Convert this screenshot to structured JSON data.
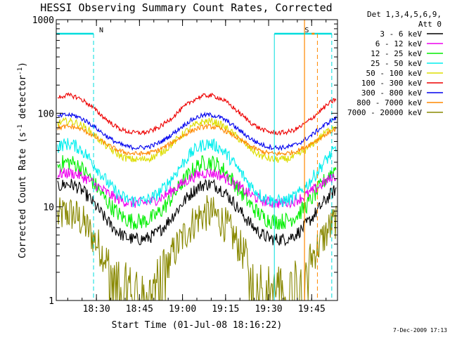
{
  "chart_data": {
    "type": "line",
    "title": "HESSI Observing Summary Count Rates, Corrected",
    "xlabel": "Start Time (01-Jul-08 18:16:22)",
    "ylabel_main": "Corrected Count Rate (s",
    "ylabel_sup1": "-1",
    "ylabel_mid": " detector",
    "ylabel_sup2": "-1",
    "ylabel_end": ")",
    "x_range_minutes": [
      0,
      98
    ],
    "x_ticks": [
      {
        "minute": 14,
        "label": "18:30"
      },
      {
        "minute": 29,
        "label": "18:45"
      },
      {
        "minute": 44,
        "label": "19:00"
      },
      {
        "minute": 59,
        "label": "19:15"
      },
      {
        "minute": 74,
        "label": "19:30"
      },
      {
        "minute": 89,
        "label": "19:45"
      }
    ],
    "y_scale": "log",
    "ylim": [
      1,
      1000
    ],
    "y_ticks": [
      {
        "value": 1,
        "label": "1"
      },
      {
        "value": 10,
        "label": "10"
      },
      {
        "value": 100,
        "label": "100"
      },
      {
        "value": 1000,
        "label": "1000"
      }
    ],
    "legend": {
      "position": "outside-right",
      "header_line1": "Det 1,3,4,5,6,9,",
      "header_line2": "Att 0"
    },
    "series": [
      {
        "name": "3 - 6 keV",
        "color": "#000000",
        "high": 17.5,
        "low": 4.5,
        "noise": 0.07
      },
      {
        "name": "6 - 12 keV",
        "color": "#ee00ee",
        "high": 23,
        "low": 11,
        "noise": 0.06
      },
      {
        "name": "12 - 25 keV",
        "color": "#00ee00",
        "high": 30,
        "low": 7,
        "noise": 0.09
      },
      {
        "name": "25 - 50 keV",
        "color": "#00eeee",
        "high": 47,
        "low": 11.5,
        "noise": 0.07
      },
      {
        "name": "50 - 100 keV",
        "color": "#dddd00",
        "high": 82,
        "low": 32,
        "noise": 0.04
      },
      {
        "name": "100 - 300 keV",
        "color": "#ee0000",
        "high": 155,
        "low": 62,
        "noise": 0.025
      },
      {
        "name": "300 - 800 keV",
        "color": "#0000ee",
        "high": 96,
        "low": 43,
        "noise": 0.025
      },
      {
        "name": "800 - 7000 keV",
        "color": "#ff8800",
        "high": 72,
        "low": 37,
        "noise": 0.025
      },
      {
        "name": "7000 - 20000 keV",
        "color": "#888800",
        "high": 8.5,
        "low": 1.5,
        "noise": 0.2
      }
    ],
    "flags": [
      {
        "label": "N",
        "color": "#00dddd",
        "bar_start_minute": 0,
        "bar_end_minute": 13,
        "dash_minute": 13
      },
      {
        "label": "N",
        "color": "#00dddd",
        "bar_start_minute": 76,
        "bar_end_minute": 96,
        "dash_minute": 96
      },
      {
        "label": "S",
        "color": "#ff8800",
        "bar_start_minute": 89,
        "bar_end_minute": 90,
        "dash_minute": 91
      }
    ],
    "saa_line_minute": 86.5,
    "footer_date": "7-Dec-2009 17:13"
  }
}
